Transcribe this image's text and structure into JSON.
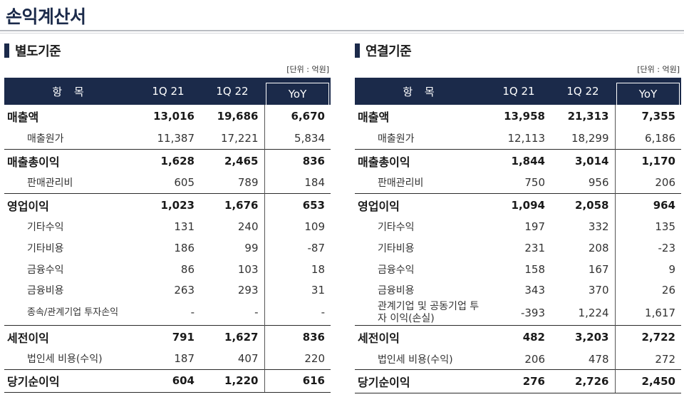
{
  "page_title": "손익계산서",
  "panels": {
    "left": {
      "title": "별도기준",
      "unit": "[단위 : 억원]",
      "headers": {
        "item": "항 목",
        "q1": "1Q 21",
        "q2": "1Q 22",
        "yoy": "YoY"
      },
      "rows": [
        {
          "label": "매출액",
          "q1": "13,016",
          "q2": "19,686",
          "yoy": "6,670"
        },
        {
          "label": "매출원가",
          "q1": "11,387",
          "q2": "17,221",
          "yoy": "5,834"
        },
        {
          "label": "매출총이익",
          "q1": "1,628",
          "q2": "2,465",
          "yoy": "836"
        },
        {
          "label": "판매관리비",
          "q1": "605",
          "q2": "789",
          "yoy": "184"
        },
        {
          "label": "영업이익",
          "q1": "1,023",
          "q2": "1,676",
          "yoy": "653"
        },
        {
          "label": "기타수익",
          "q1": "131",
          "q2": "240",
          "yoy": "109"
        },
        {
          "label": "기타비용",
          "q1": "186",
          "q2": "99",
          "yoy": "-87"
        },
        {
          "label": "금융수익",
          "q1": "86",
          "q2": "103",
          "yoy": "18"
        },
        {
          "label": "금융비용",
          "q1": "263",
          "q2": "293",
          "yoy": "31"
        },
        {
          "label": "종속/관계기업 투자손익",
          "q1": "-",
          "q2": "-",
          "yoy": "-"
        },
        {
          "label": "세전이익",
          "q1": "791",
          "q2": "1,627",
          "yoy": "836"
        },
        {
          "label": "법인세 비용(수익)",
          "q1": "187",
          "q2": "407",
          "yoy": "220"
        },
        {
          "label": "당기순이익",
          "q1": "604",
          "q2": "1,220",
          "yoy": "616"
        }
      ]
    },
    "right": {
      "title": "연결기준",
      "unit": "[단위 : 억원]",
      "headers": {
        "item": "항 목",
        "q1": "1Q 21",
        "q2": "1Q 22",
        "yoy": "YoY"
      },
      "rows": [
        {
          "label": "매출액",
          "q1": "13,958",
          "q2": "21,313",
          "yoy": "7,355"
        },
        {
          "label": "매출원가",
          "q1": "12,113",
          "q2": "18,299",
          "yoy": "6,186"
        },
        {
          "label": "매출총이익",
          "q1": "1,844",
          "q2": "3,014",
          "yoy": "1,170"
        },
        {
          "label": "판매관리비",
          "q1": "750",
          "q2": "956",
          "yoy": "206"
        },
        {
          "label": "영업이익",
          "q1": "1,094",
          "q2": "2,058",
          "yoy": "964"
        },
        {
          "label": "기타수익",
          "q1": "197",
          "q2": "332",
          "yoy": "135"
        },
        {
          "label": "기타비용",
          "q1": "231",
          "q2": "208",
          "yoy": "-23"
        },
        {
          "label": "금융수익",
          "q1": "158",
          "q2": "167",
          "yoy": "9"
        },
        {
          "label": "금융비용",
          "q1": "343",
          "q2": "370",
          "yoy": "26"
        },
        {
          "label": "관계기업 및 공동기업 투자 이익(손실)",
          "q1": "-393",
          "q2": "1,224",
          "yoy": "1,617"
        },
        {
          "label": "세전이익",
          "q1": "482",
          "q2": "3,203",
          "yoy": "2,722"
        },
        {
          "label": "법인세 비용(수익)",
          "q1": "206",
          "q2": "478",
          "yoy": "272"
        },
        {
          "label": "당기순이익",
          "q1": "276",
          "q2": "2,726",
          "yoy": "2,450"
        }
      ]
    }
  },
  "colors": {
    "header_navy": "#1b2a4a"
  }
}
